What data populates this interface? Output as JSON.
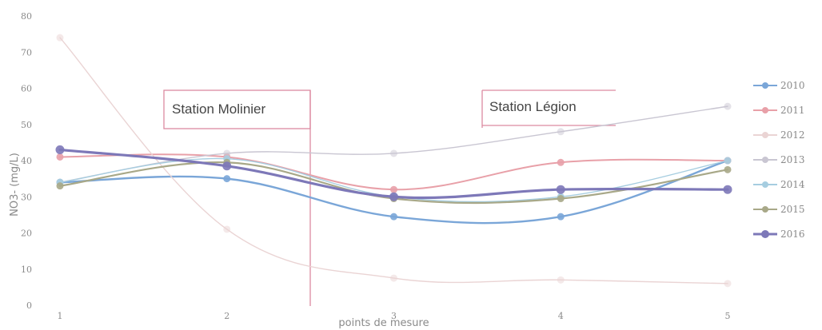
{
  "chart_data": {
    "type": "line",
    "title": "",
    "xlabel": "points de mesure",
    "ylabel": "NO3- (mg/L)",
    "categories": [
      "1",
      "2",
      "3",
      "4",
      "5"
    ],
    "yticks": [
      "0",
      "10",
      "20",
      "30",
      "40",
      "50",
      "60",
      "70",
      "80"
    ],
    "ylim": [
      0,
      80
    ],
    "grid": false,
    "legend_position": "right",
    "series": [
      {
        "name": "2010",
        "color": "#7aa6d8",
        "values": [
          34,
          35,
          24.5,
          24.5,
          40
        ]
      },
      {
        "name": "2011",
        "color": "#e8a0a8",
        "values": [
          41,
          41,
          32,
          39.5,
          40
        ]
      },
      {
        "name": "2012",
        "color": "#ead4d4",
        "values": [
          74,
          21,
          7.5,
          7,
          6
        ]
      },
      {
        "name": "2013",
        "color": "#c9c6d2",
        "values": [
          34,
          42,
          42,
          48,
          55
        ]
      },
      {
        "name": "2014",
        "color": "#a6cde0",
        "values": [
          34,
          40.5,
          30,
          30,
          40
        ]
      },
      {
        "name": "2015",
        "color": "#a8a888",
        "values": [
          33,
          39.5,
          29.5,
          29.5,
          37.5
        ]
      },
      {
        "name": "2016",
        "color": "#7d78b8",
        "values": [
          43,
          38.5,
          30,
          32,
          32
        ]
      }
    ],
    "annotations": [
      {
        "text": "Station Molinier",
        "color": "#dc8aa0"
      },
      {
        "text": "Station Légion",
        "color": "#dc8aa0"
      }
    ]
  }
}
